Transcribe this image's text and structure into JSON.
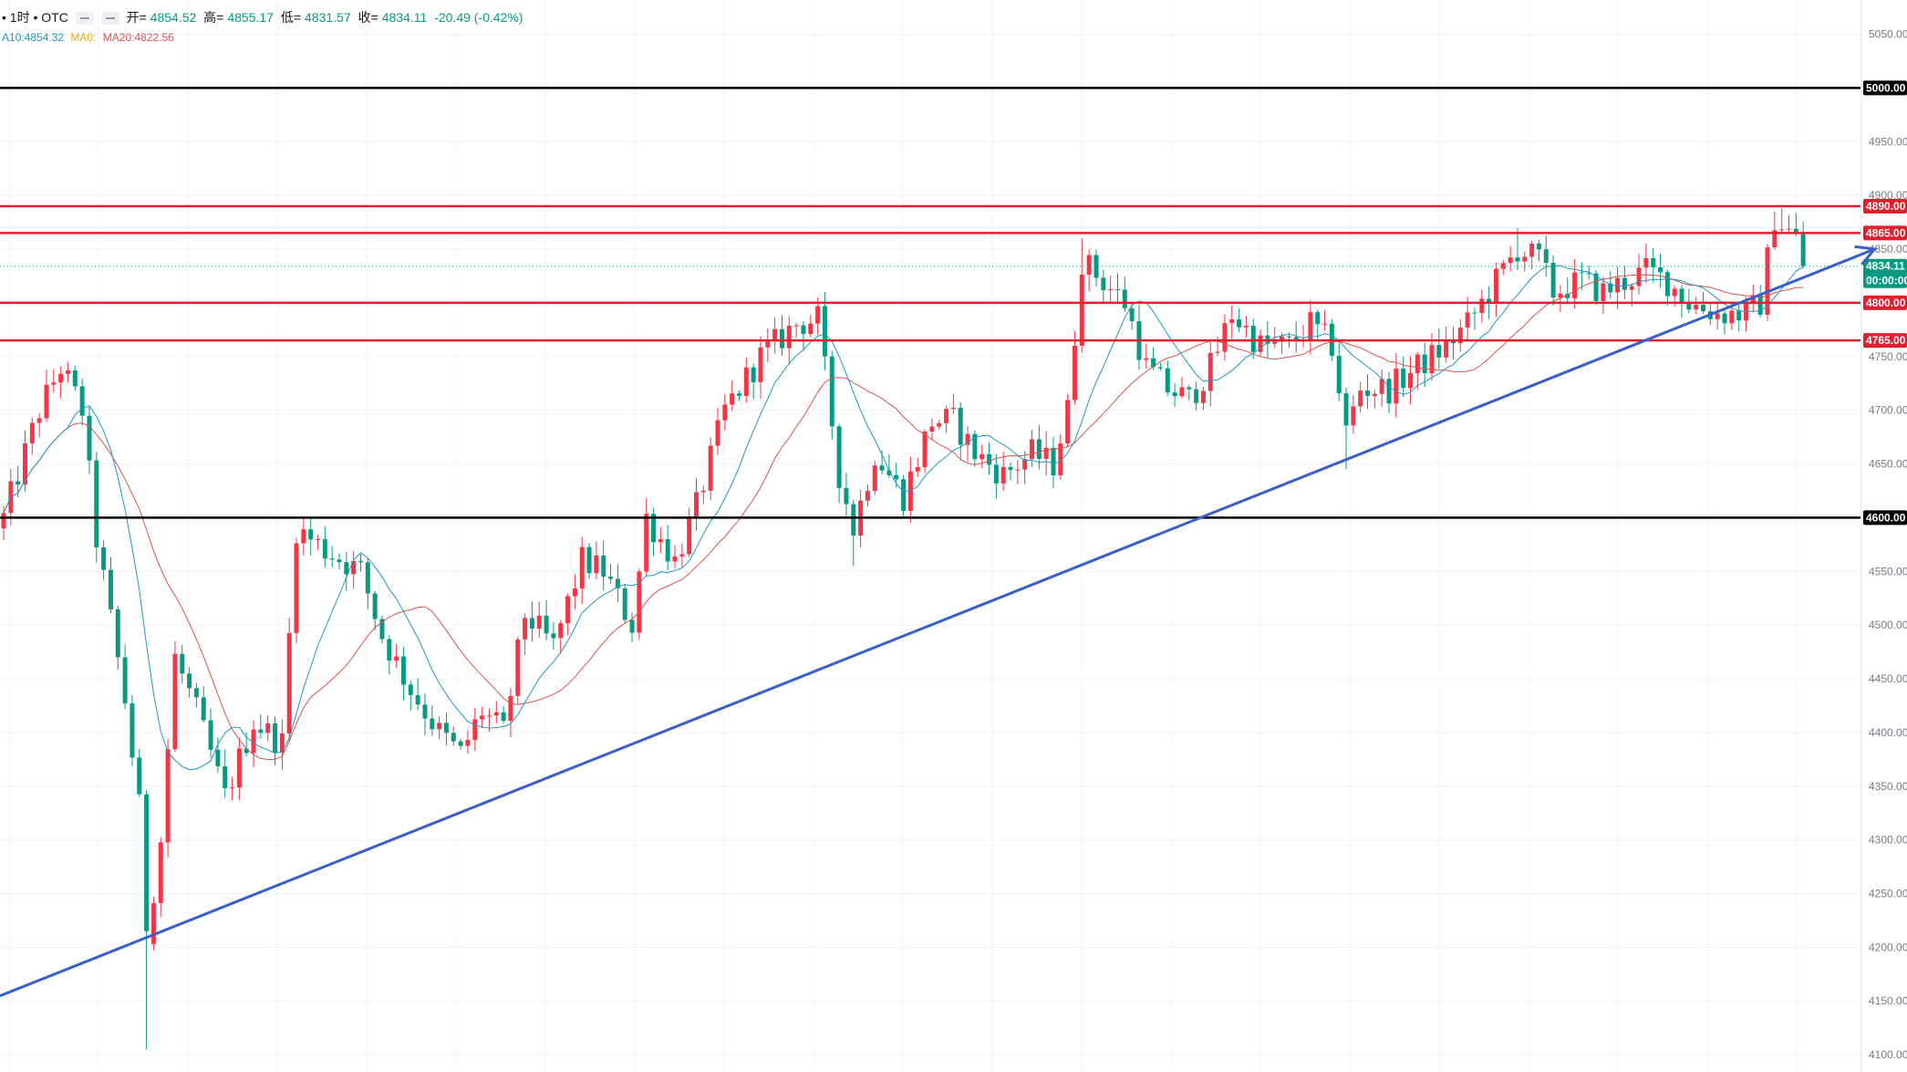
{
  "legend": {
    "symbol": "• 1时 • OTC",
    "open_label": "开=",
    "open": "4854.52",
    "high_label": "高=",
    "high": "4855.17",
    "low_label": "低=",
    "low": "4831.57",
    "close_label": "收=",
    "close": "4834.11",
    "change": "-20.49 (-0.42%)",
    "ma10": "A10:4854.32",
    "ma0": "MA0:",
    "ma20": "MA20:4822.56"
  },
  "colors": {
    "up": "#f23645",
    "down": "#089981",
    "ma_fast": "#2196c9",
    "ma_slow": "#d9534f",
    "resistance": "#e0202e",
    "round_level": "#000000",
    "trendline": "#3b5fc9"
  },
  "chart_data": {
    "type": "candlestick",
    "instrument": "OTC",
    "interval": "1时",
    "y_axis": {
      "ylim": [
        4095,
        5070
      ],
      "ticks": [
        "4100.00",
        "4150.00",
        "4200.00",
        "4250.00",
        "4300.00",
        "4350.00",
        "4400.00",
        "4450.00",
        "4500.00",
        "4550.00",
        "4600.00",
        "4650.00",
        "4700.00",
        "4750.00",
        "4800.00",
        "4850.00",
        "4900.00",
        "4950.00",
        "5000.00",
        "5050.00"
      ]
    },
    "horizontal_levels": [
      {
        "value": 5000,
        "label": "5000.00",
        "kind": "round"
      },
      {
        "value": 4890,
        "label": "4890.00",
        "kind": "resistance"
      },
      {
        "value": 4865,
        "label": "4865.00",
        "kind": "resistance"
      },
      {
        "value": 4800,
        "label": "4800.00",
        "kind": "resistance"
      },
      {
        "value": 4765,
        "label": "4765.00",
        "kind": "resistance"
      },
      {
        "value": 4600,
        "label": "4600.00",
        "kind": "round"
      }
    ],
    "last_price": {
      "value": 4834.11,
      "label": "4834.11",
      "countdown": "00:00:00"
    },
    "trendline": {
      "from_index": -8,
      "from_value": 4135,
      "to_index": 262,
      "to_value": 4850,
      "arrow": true
    },
    "anchors": [
      [
        0,
        4600
      ],
      [
        5,
        4700
      ],
      [
        8,
        4740
      ],
      [
        11,
        4700
      ],
      [
        13,
        4580
      ],
      [
        17,
        4430
      ],
      [
        19,
        4330
      ],
      [
        20,
        4210
      ],
      [
        22,
        4300
      ],
      [
        24,
        4470
      ],
      [
        27,
        4420
      ],
      [
        31,
        4340
      ],
      [
        35,
        4410
      ],
      [
        39,
        4390
      ],
      [
        41,
        4590
      ],
      [
        45,
        4570
      ],
      [
        50,
        4550
      ],
      [
        53,
        4490
      ],
      [
        57,
        4440
      ],
      [
        61,
        4400
      ],
      [
        64,
        4380
      ],
      [
        67,
        4420
      ],
      [
        70,
        4400
      ],
      [
        73,
        4510
      ],
      [
        77,
        4480
      ],
      [
        81,
        4560
      ],
      [
        84,
        4550
      ],
      [
        88,
        4500
      ],
      [
        90,
        4600
      ],
      [
        94,
        4560
      ],
      [
        97,
        4610
      ],
      [
        101,
        4700
      ],
      [
        106,
        4750
      ],
      [
        111,
        4780
      ],
      [
        114,
        4785
      ],
      [
        117,
        4640
      ],
      [
        119,
        4590
      ],
      [
        122,
        4660
      ],
      [
        126,
        4620
      ],
      [
        130,
        4690
      ],
      [
        133,
        4690
      ],
      [
        136,
        4660
      ],
      [
        140,
        4640
      ],
      [
        144,
        4660
      ],
      [
        147,
        4650
      ],
      [
        149,
        4700
      ],
      [
        151,
        4840
      ],
      [
        154,
        4820
      ],
      [
        157,
        4800
      ],
      [
        160,
        4740
      ],
      [
        163,
        4720
      ],
      [
        166,
        4710
      ],
      [
        169,
        4740
      ],
      [
        172,
        4790
      ],
      [
        176,
        4760
      ],
      [
        180,
        4760
      ],
      [
        183,
        4780
      ],
      [
        186,
        4760
      ],
      [
        188,
        4680
      ],
      [
        190,
        4720
      ],
      [
        194,
        4720
      ],
      [
        198,
        4740
      ],
      [
        202,
        4760
      ],
      [
        205,
        4780
      ],
      [
        208,
        4810
      ],
      [
        212,
        4850
      ],
      [
        215,
        4840
      ],
      [
        217,
        4810
      ],
      [
        221,
        4820
      ],
      [
        224,
        4810
      ],
      [
        227,
        4820
      ],
      [
        230,
        4830
      ],
      [
        233,
        4820
      ],
      [
        236,
        4800
      ],
      [
        240,
        4790
      ],
      [
        244,
        4790
      ],
      [
        246,
        4800
      ],
      [
        248,
        4880
      ],
      [
        251,
        4860
      ],
      [
        252,
        4834.11
      ]
    ]
  }
}
